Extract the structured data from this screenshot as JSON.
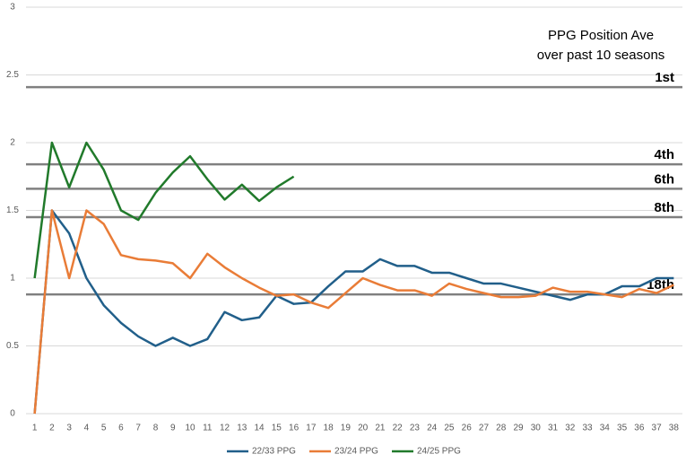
{
  "chart_data": {
    "type": "line",
    "annotation": [
      "PPG Position Ave",
      "over past 10 seasons"
    ],
    "categories": [
      "1",
      "2",
      "3",
      "4",
      "5",
      "6",
      "7",
      "8",
      "9",
      "10",
      "11",
      "12",
      "13",
      "14",
      "15",
      "16",
      "17",
      "18",
      "19",
      "20",
      "21",
      "22",
      "23",
      "24",
      "25",
      "26",
      "27",
      "28",
      "29",
      "30",
      "31",
      "32",
      "33",
      "34",
      "35",
      "36",
      "37",
      "38"
    ],
    "series": [
      {
        "name": "22/33 PPG",
        "color": "#215f8a",
        "values": [
          0,
          1.5,
          1.33,
          1.0,
          0.8,
          0.67,
          0.57,
          0.5,
          0.56,
          0.5,
          0.55,
          0.75,
          0.69,
          0.71,
          0.87,
          0.81,
          0.82,
          0.94,
          1.05,
          1.05,
          1.14,
          1.09,
          1.09,
          1.04,
          1.04,
          1.0,
          0.96,
          0.96,
          0.93,
          0.9,
          0.87,
          0.84,
          0.88,
          0.88,
          0.94,
          0.94,
          1.0,
          1.0
        ]
      },
      {
        "name": "23/24 PPG",
        "color": "#e97c37",
        "values": [
          0,
          1.5,
          1.0,
          1.5,
          1.4,
          1.17,
          1.14,
          1.13,
          1.11,
          1.0,
          1.18,
          1.08,
          1.0,
          0.93,
          0.87,
          0.88,
          0.82,
          0.78,
          0.89,
          1.0,
          0.95,
          0.91,
          0.91,
          0.87,
          0.96,
          0.92,
          0.89,
          0.86,
          0.86,
          0.87,
          0.93,
          0.9,
          0.9,
          0.88,
          0.86,
          0.92,
          0.89,
          0.95
        ]
      },
      {
        "name": "24/25 PPG",
        "color": "#217a2b",
        "values": [
          1.0,
          2.0,
          1.67,
          2.0,
          1.8,
          1.5,
          1.43,
          1.63,
          1.78,
          1.9,
          1.73,
          1.58,
          1.69,
          1.57,
          1.67,
          1.75,
          null,
          null,
          null,
          null,
          null,
          null,
          null,
          null,
          null,
          null,
          null,
          null,
          null,
          null,
          null,
          null,
          null,
          null,
          null,
          null,
          null,
          null
        ]
      }
    ],
    "reference_lines": [
      {
        "label": "1st",
        "value": 2.41
      },
      {
        "label": "4th",
        "value": 1.84
      },
      {
        "label": "6th",
        "value": 1.66
      },
      {
        "label": "8th",
        "value": 1.45
      },
      {
        "label": "18th",
        "value": 0.88
      }
    ],
    "ylim": [
      0,
      3
    ],
    "yticks": [
      0,
      0.5,
      1,
      1.5,
      2,
      2.5,
      3
    ],
    "grid": true,
    "legend": "bottom"
  }
}
